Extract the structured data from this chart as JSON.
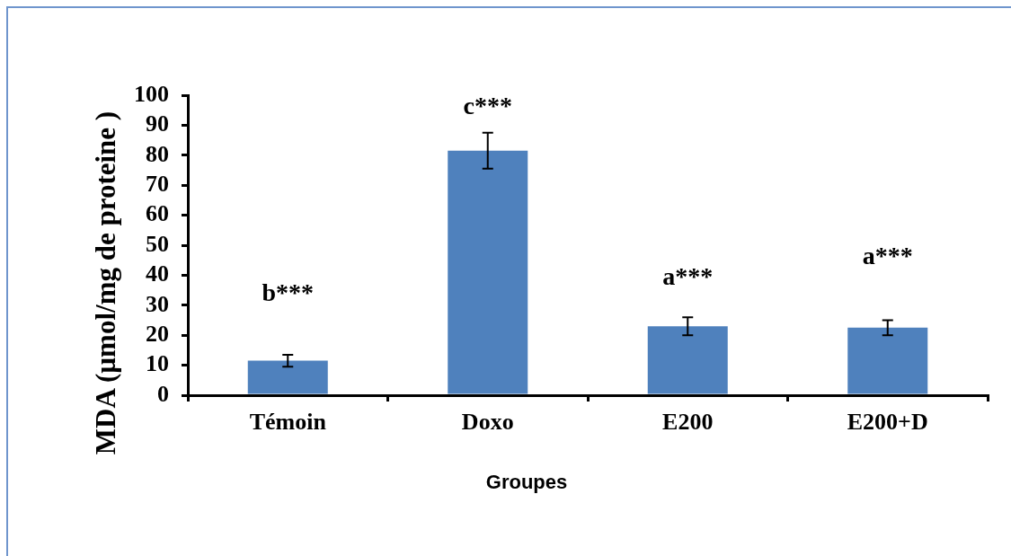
{
  "chart_data": {
    "type": "bar",
    "xlabel": "Groupes",
    "ylabel": "MDA (µmol/mg de proteine )",
    "categories": [
      "Témoin",
      "Doxo",
      "E200",
      "E200+D"
    ],
    "values": [
      11.5,
      81.5,
      23,
      22.5
    ],
    "errors": [
      2,
      6,
      3,
      2.5
    ],
    "color": "#4f81bd",
    "ylim": [
      0,
      100
    ],
    "yticks": [
      0,
      10,
      20,
      30,
      40,
      50,
      60,
      70,
      80,
      90,
      100
    ],
    "annotations": [
      "b***",
      "c***",
      "a***",
      "a***"
    ]
  }
}
